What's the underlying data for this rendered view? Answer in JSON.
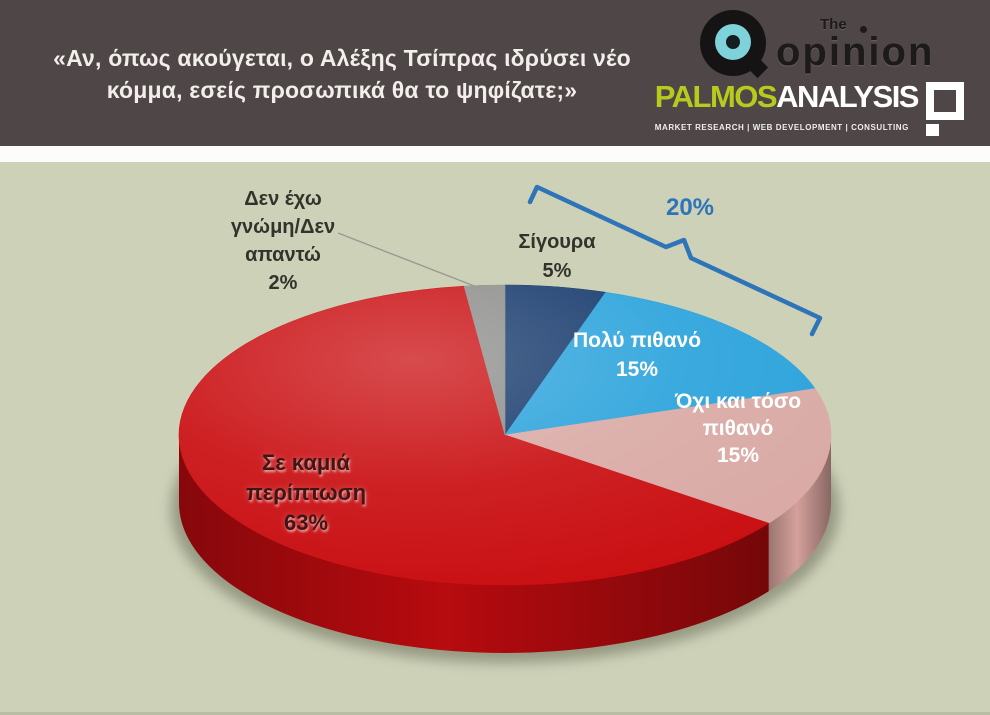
{
  "header": {
    "question": "«Αν, όπως ακούγεται, ο Αλέξης Τσίπρας ιδρύσει νέο\nκόμμα, εσείς προσωπικά θα το ψηφίζατε;»",
    "opinion_logo": {
      "the": "The",
      "word": "opinion"
    },
    "palmos_logo": {
      "palmos": "PALMOS",
      "analysis": "ANALYSIS",
      "tagline": "MARKET RESEARCH | WEB DEVELOPMENT | CONSULTING"
    }
  },
  "colors": {
    "header_bg": "#4f4647",
    "panel_bg": "#cdd1b8",
    "strip": "#fcfcfa",
    "question_text": "#f2efeb",
    "accent_blue": "#2e74b8",
    "leader_line": "#9a9a90",
    "opinion_teal": "#7ed3da",
    "palmos_green": "#b5cb1d"
  },
  "chart_data": {
    "type": "pie",
    "three_d": true,
    "title": "«Αν, όπως ακούγεται, ο Αλέξης Τσίπρας ιδρύσει νέο κόμμα, εσείς προσωπικά θα το ψηφίζατε;»",
    "start_angle_deg": 0,
    "clockwise": true,
    "legend_position": "none",
    "slices": [
      {
        "name": "sigoura",
        "label": "Σίγουρα",
        "value": 5,
        "pct": "5%",
        "color": "#14386b",
        "side_color": "#0e2a50",
        "label_display": "Σίγουρα\n5%",
        "label_color": "#34332b"
      },
      {
        "name": "poly-pithano",
        "label": "Πολύ πιθανό",
        "value": 15,
        "pct": "15%",
        "color": "#29a2db",
        "side_color": "#1d7fae",
        "label_display": "Πολύ πιθανό\n15%",
        "label_color": "#ffffff"
      },
      {
        "name": "oxi-kai-toso-pithano",
        "label": "Όχι και τόσο πιθανό",
        "value": 15,
        "pct": "15%",
        "color": "#d9a9a4",
        "side_color": "#bd8f8a",
        "label_display": "Όχι και τόσο\nπιθανό\n15%",
        "label_color": "#ffffff"
      },
      {
        "name": "se-kamia-periptosi",
        "label": "Σε καμιά περίπτωση",
        "value": 63,
        "pct": "63%",
        "color": "#c90d10",
        "side_color": "#a30a0d",
        "label_display": "Σε καμιά\nπερίπτωση\n63%",
        "label_color": "#421414"
      },
      {
        "name": "den-exo-gnomi",
        "label": "Δεν έχω γνώμη/Δεν απαντώ",
        "value": 2,
        "pct": "2%",
        "color": "#8c8c8a",
        "side_color": "#6e6e6c",
        "label_display": "Δεν έχω\nγνώμη/Δεν\nαπαντώ\n2%",
        "label_color": "#34332b"
      }
    ],
    "annotation": {
      "text": "20%",
      "covers": "Σίγουρα + Πολύ πιθανό",
      "color": "#2e74b8"
    }
  }
}
